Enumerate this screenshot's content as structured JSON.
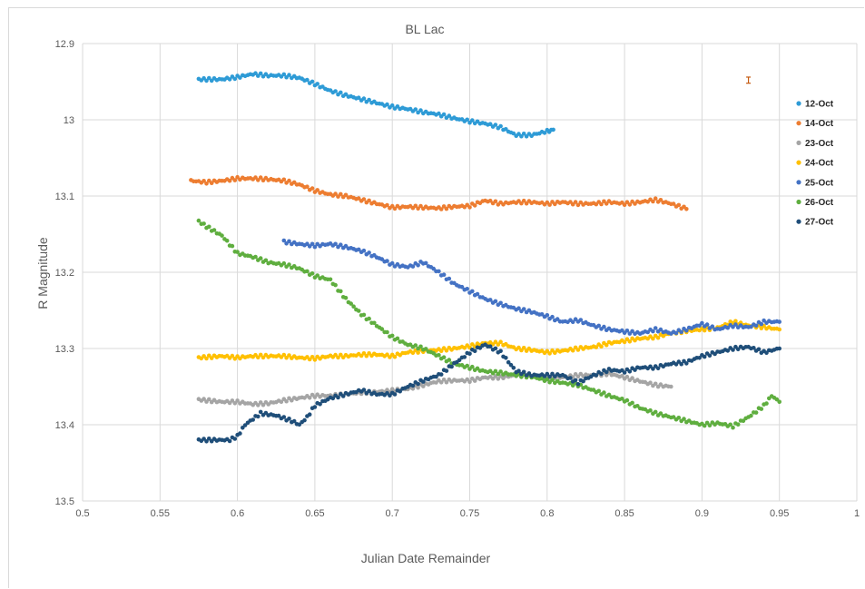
{
  "chart_data": {
    "type": "scatter",
    "title": "BL Lac",
    "xlabel": "Julian Date Remainder",
    "ylabel": "R Magnitude",
    "xlim": [
      0.5,
      1
    ],
    "ylim": [
      12.9,
      13.5
    ],
    "y_reversed": true,
    "grid": true,
    "legend_position": "right",
    "x_ticks": [
      "0.5",
      "0.55",
      "0.6",
      "0.65",
      "0.7",
      "0.75",
      "0.8",
      "0.85",
      "0.9",
      "0.95",
      "1"
    ],
    "y_ticks": [
      "12.9",
      "13",
      "13.1",
      "13.2",
      "13.3",
      "13.4",
      "13.5"
    ],
    "error_bar": {
      "x": 0.93,
      "y": 12.948,
      "yerr": 0.004,
      "color": "#c55a11"
    },
    "series": [
      {
        "name": "12-Oct",
        "color": "#2e9bd6",
        "points": [
          [
            0.575,
            12.947
          ],
          [
            0.59,
            12.947
          ],
          [
            0.6,
            12.944
          ],
          [
            0.61,
            12.94
          ],
          [
            0.62,
            12.942
          ],
          [
            0.63,
            12.942
          ],
          [
            0.64,
            12.945
          ],
          [
            0.65,
            12.953
          ],
          [
            0.66,
            12.962
          ],
          [
            0.67,
            12.968
          ],
          [
            0.68,
            12.973
          ],
          [
            0.69,
            12.978
          ],
          [
            0.7,
            12.983
          ],
          [
            0.71,
            12.986
          ],
          [
            0.72,
            12.99
          ],
          [
            0.73,
            12.993
          ],
          [
            0.74,
            12.998
          ],
          [
            0.75,
            13.002
          ],
          [
            0.76,
            13.005
          ],
          [
            0.77,
            13.01
          ],
          [
            0.78,
            13.02
          ],
          [
            0.79,
            13.02
          ],
          [
            0.8,
            13.015
          ],
          [
            0.804,
            13.013
          ]
        ]
      },
      {
        "name": "14-Oct",
        "color": "#ed7d31",
        "points": [
          [
            0.57,
            13.08
          ],
          [
            0.58,
            13.082
          ],
          [
            0.59,
            13.08
          ],
          [
            0.6,
            13.077
          ],
          [
            0.61,
            13.077
          ],
          [
            0.62,
            13.078
          ],
          [
            0.63,
            13.08
          ],
          [
            0.64,
            13.085
          ],
          [
            0.65,
            13.093
          ],
          [
            0.66,
            13.098
          ],
          [
            0.67,
            13.1
          ],
          [
            0.68,
            13.105
          ],
          [
            0.69,
            13.11
          ],
          [
            0.7,
            13.115
          ],
          [
            0.71,
            13.114
          ],
          [
            0.72,
            13.115
          ],
          [
            0.73,
            13.116
          ],
          [
            0.74,
            13.114
          ],
          [
            0.75,
            13.113
          ],
          [
            0.76,
            13.106
          ],
          [
            0.77,
            13.11
          ],
          [
            0.78,
            13.108
          ],
          [
            0.79,
            13.108
          ],
          [
            0.8,
            13.11
          ],
          [
            0.81,
            13.108
          ],
          [
            0.82,
            13.11
          ],
          [
            0.83,
            13.11
          ],
          [
            0.84,
            13.108
          ],
          [
            0.85,
            13.11
          ],
          [
            0.86,
            13.108
          ],
          [
            0.87,
            13.105
          ],
          [
            0.88,
            13.11
          ],
          [
            0.89,
            13.117
          ]
        ]
      },
      {
        "name": "23-Oct",
        "color": "#a5a5a5",
        "points": [
          [
            0.575,
            13.367
          ],
          [
            0.59,
            13.37
          ],
          [
            0.6,
            13.37
          ],
          [
            0.61,
            13.373
          ],
          [
            0.62,
            13.372
          ],
          [
            0.63,
            13.368
          ],
          [
            0.64,
            13.365
          ],
          [
            0.65,
            13.362
          ],
          [
            0.66,
            13.362
          ],
          [
            0.67,
            13.36
          ],
          [
            0.68,
            13.358
          ],
          [
            0.69,
            13.357
          ],
          [
            0.7,
            13.355
          ],
          [
            0.71,
            13.353
          ],
          [
            0.72,
            13.348
          ],
          [
            0.73,
            13.343
          ],
          [
            0.74,
            13.342
          ],
          [
            0.75,
            13.342
          ],
          [
            0.76,
            13.338
          ],
          [
            0.77,
            13.338
          ],
          [
            0.78,
            13.335
          ],
          [
            0.79,
            13.335
          ],
          [
            0.8,
            13.337
          ],
          [
            0.81,
            13.338
          ],
          [
            0.82,
            13.335
          ],
          [
            0.83,
            13.335
          ],
          [
            0.84,
            13.333
          ],
          [
            0.85,
            13.338
          ],
          [
            0.86,
            13.343
          ],
          [
            0.87,
            13.348
          ],
          [
            0.88,
            13.35
          ]
        ]
      },
      {
        "name": "24-Oct",
        "color": "#ffc000",
        "points": [
          [
            0.575,
            13.312
          ],
          [
            0.59,
            13.31
          ],
          [
            0.6,
            13.312
          ],
          [
            0.61,
            13.31
          ],
          [
            0.62,
            13.31
          ],
          [
            0.63,
            13.31
          ],
          [
            0.64,
            13.312
          ],
          [
            0.65,
            13.313
          ],
          [
            0.66,
            13.31
          ],
          [
            0.67,
            13.31
          ],
          [
            0.68,
            13.308
          ],
          [
            0.69,
            13.308
          ],
          [
            0.7,
            13.31
          ],
          [
            0.71,
            13.305
          ],
          [
            0.72,
            13.303
          ],
          [
            0.73,
            13.302
          ],
          [
            0.74,
            13.3
          ],
          [
            0.75,
            13.297
          ],
          [
            0.76,
            13.293
          ],
          [
            0.77,
            13.293
          ],
          [
            0.78,
            13.3
          ],
          [
            0.79,
            13.302
          ],
          [
            0.8,
            13.305
          ],
          [
            0.81,
            13.303
          ],
          [
            0.82,
            13.3
          ],
          [
            0.83,
            13.298
          ],
          [
            0.84,
            13.293
          ],
          [
            0.85,
            13.29
          ],
          [
            0.86,
            13.287
          ],
          [
            0.87,
            13.285
          ],
          [
            0.88,
            13.28
          ],
          [
            0.89,
            13.277
          ],
          [
            0.9,
            13.275
          ],
          [
            0.91,
            13.273
          ],
          [
            0.92,
            13.265
          ],
          [
            0.93,
            13.27
          ],
          [
            0.94,
            13.272
          ],
          [
            0.95,
            13.275
          ]
        ]
      },
      {
        "name": "25-Oct",
        "color": "#4472c4",
        "points": [
          [
            0.63,
            13.16
          ],
          [
            0.64,
            13.163
          ],
          [
            0.65,
            13.165
          ],
          [
            0.66,
            13.163
          ],
          [
            0.67,
            13.167
          ],
          [
            0.68,
            13.172
          ],
          [
            0.69,
            13.18
          ],
          [
            0.7,
            13.19
          ],
          [
            0.71,
            13.193
          ],
          [
            0.72,
            13.187
          ],
          [
            0.73,
            13.2
          ],
          [
            0.74,
            13.215
          ],
          [
            0.75,
            13.225
          ],
          [
            0.76,
            13.235
          ],
          [
            0.77,
            13.242
          ],
          [
            0.78,
            13.248
          ],
          [
            0.79,
            13.252
          ],
          [
            0.8,
            13.258
          ],
          [
            0.81,
            13.265
          ],
          [
            0.82,
            13.263
          ],
          [
            0.83,
            13.27
          ],
          [
            0.84,
            13.275
          ],
          [
            0.85,
            13.278
          ],
          [
            0.86,
            13.28
          ],
          [
            0.87,
            13.275
          ],
          [
            0.88,
            13.28
          ],
          [
            0.89,
            13.275
          ],
          [
            0.9,
            13.268
          ],
          [
            0.91,
            13.275
          ],
          [
            0.92,
            13.27
          ],
          [
            0.93,
            13.272
          ],
          [
            0.94,
            13.265
          ],
          [
            0.95,
            13.265
          ]
        ]
      },
      {
        "name": "26-Oct",
        "color": "#5fae3f",
        "points": [
          [
            0.575,
            13.133
          ],
          [
            0.58,
            13.14
          ],
          [
            0.59,
            13.152
          ],
          [
            0.6,
            13.175
          ],
          [
            0.61,
            13.18
          ],
          [
            0.62,
            13.187
          ],
          [
            0.63,
            13.19
          ],
          [
            0.64,
            13.195
          ],
          [
            0.65,
            13.205
          ],
          [
            0.66,
            13.21
          ],
          [
            0.67,
            13.235
          ],
          [
            0.68,
            13.255
          ],
          [
            0.69,
            13.27
          ],
          [
            0.7,
            13.285
          ],
          [
            0.71,
            13.295
          ],
          [
            0.72,
            13.3
          ],
          [
            0.73,
            13.31
          ],
          [
            0.74,
            13.32
          ],
          [
            0.75,
            13.325
          ],
          [
            0.76,
            13.33
          ],
          [
            0.77,
            13.332
          ],
          [
            0.78,
            13.335
          ],
          [
            0.79,
            13.337
          ],
          [
            0.8,
            13.342
          ],
          [
            0.81,
            13.345
          ],
          [
            0.82,
            13.348
          ],
          [
            0.83,
            13.355
          ],
          [
            0.84,
            13.362
          ],
          [
            0.85,
            13.368
          ],
          [
            0.86,
            13.378
          ],
          [
            0.87,
            13.385
          ],
          [
            0.88,
            13.39
          ],
          [
            0.89,
            13.395
          ],
          [
            0.9,
            13.4
          ],
          [
            0.91,
            13.398
          ],
          [
            0.92,
            13.402
          ],
          [
            0.93,
            13.39
          ],
          [
            0.94,
            13.375
          ],
          [
            0.945,
            13.362
          ],
          [
            0.95,
            13.37
          ]
        ]
      },
      {
        "name": "27-Oct",
        "color": "#1f4e79",
        "points": [
          [
            0.575,
            13.42
          ],
          [
            0.585,
            13.42
          ],
          [
            0.595,
            13.42
          ],
          [
            0.6,
            13.415
          ],
          [
            0.605,
            13.4
          ],
          [
            0.615,
            13.385
          ],
          [
            0.625,
            13.388
          ],
          [
            0.635,
            13.395
          ],
          [
            0.64,
            13.4
          ],
          [
            0.645,
            13.39
          ],
          [
            0.65,
            13.375
          ],
          [
            0.66,
            13.365
          ],
          [
            0.67,
            13.36
          ],
          [
            0.68,
            13.355
          ],
          [
            0.69,
            13.36
          ],
          [
            0.7,
            13.36
          ],
          [
            0.71,
            13.35
          ],
          [
            0.72,
            13.342
          ],
          [
            0.73,
            13.335
          ],
          [
            0.74,
            13.32
          ],
          [
            0.75,
            13.305
          ],
          [
            0.76,
            13.295
          ],
          [
            0.77,
            13.305
          ],
          [
            0.78,
            13.33
          ],
          [
            0.79,
            13.335
          ],
          [
            0.8,
            13.335
          ],
          [
            0.81,
            13.335
          ],
          [
            0.82,
            13.345
          ],
          [
            0.83,
            13.335
          ],
          [
            0.84,
            13.328
          ],
          [
            0.85,
            13.33
          ],
          [
            0.86,
            13.325
          ],
          [
            0.87,
            13.325
          ],
          [
            0.88,
            13.32
          ],
          [
            0.89,
            13.318
          ],
          [
            0.9,
            13.31
          ],
          [
            0.91,
            13.305
          ],
          [
            0.92,
            13.3
          ],
          [
            0.93,
            13.298
          ],
          [
            0.94,
            13.305
          ],
          [
            0.95,
            13.3
          ]
        ]
      }
    ]
  }
}
